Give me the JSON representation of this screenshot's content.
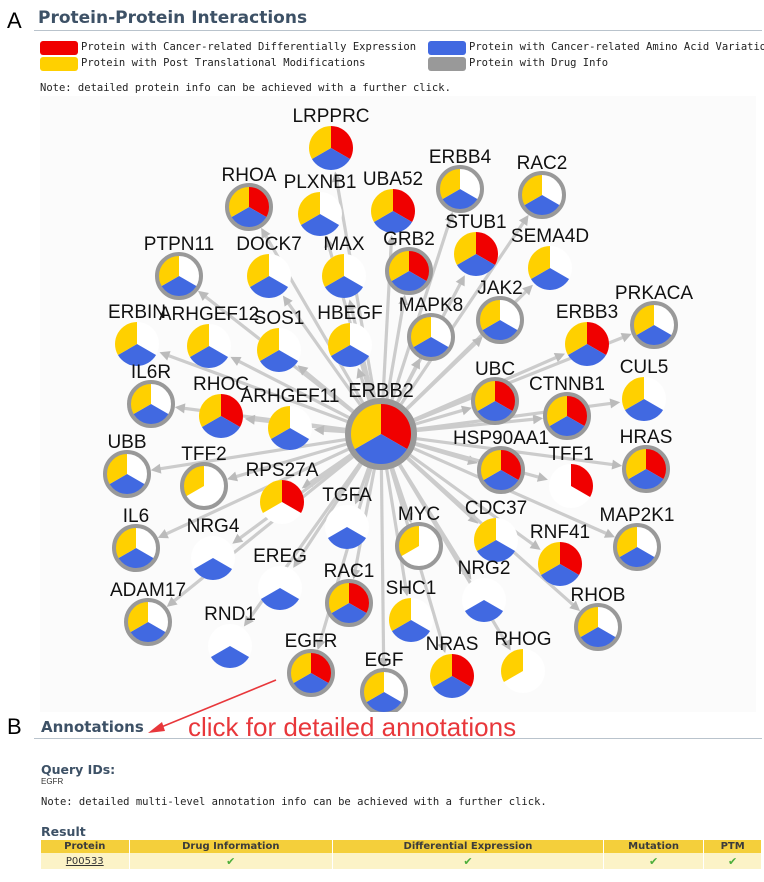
{
  "panel_labels": {
    "a": "A",
    "b": "B"
  },
  "ppi": {
    "title": "Protein-Protein Interactions",
    "legend": [
      {
        "label": "Protein with Cancer-related Differentially Expression",
        "color": "#f00000"
      },
      {
        "label": "Protein with Post Translational Modifications",
        "color": "#ffd000"
      },
      {
        "label": "Protein with Cancer-related Amino Acid Variations",
        "color": "#4169e1"
      },
      {
        "label": "Protein with Drug Info",
        "color": "#999999"
      }
    ],
    "note": "Note: detailed protein info can be achieved with a further click."
  },
  "colors": {
    "red": "#f00000",
    "yellow": "#ffd000",
    "blue": "#4169e1",
    "drug_ring": "#999999",
    "edge": "#cccccc"
  },
  "network": {
    "center": {
      "name": "ERBB2",
      "r": "#",
      "features": [
        "red",
        "yellow",
        "blue"
      ],
      "drug": true
    },
    "nodes": [
      {
        "name": "LRPPRC",
        "features": [
          "red",
          "blue",
          "yellow"
        ],
        "drug": false
      },
      {
        "name": "RHOA",
        "features": [
          "red",
          "blue",
          "yellow"
        ],
        "drug": true
      },
      {
        "name": "PLXNB1",
        "features": [
          "blue",
          "yellow"
        ],
        "drug": false
      },
      {
        "name": "UBA52",
        "features": [
          "red",
          "blue",
          "yellow"
        ],
        "drug": false
      },
      {
        "name": "ERBB4",
        "features": [
          "blue",
          "yellow"
        ],
        "drug": true
      },
      {
        "name": "RAC2",
        "features": [
          "blue",
          "yellow"
        ],
        "drug": true
      },
      {
        "name": "PTPN11",
        "features": [
          "blue",
          "yellow"
        ],
        "drug": true
      },
      {
        "name": "DOCK7",
        "features": [
          "blue",
          "yellow"
        ],
        "drug": false
      },
      {
        "name": "MAX",
        "features": [
          "blue",
          "yellow"
        ],
        "drug": false
      },
      {
        "name": "GRB2",
        "features": [
          "red",
          "blue",
          "yellow"
        ],
        "drug": true
      },
      {
        "name": "STUB1",
        "features": [
          "red",
          "blue",
          "yellow"
        ],
        "drug": false
      },
      {
        "name": "SEMA4D",
        "features": [
          "blue",
          "yellow"
        ],
        "drug": false
      },
      {
        "name": "ERBIN",
        "features": [
          "blue",
          "yellow"
        ],
        "drug": false
      },
      {
        "name": "ARHGEF12",
        "features": [
          "blue",
          "yellow"
        ],
        "drug": false
      },
      {
        "name": "SOS1",
        "features": [
          "blue",
          "yellow"
        ],
        "drug": false
      },
      {
        "name": "HBEGF",
        "features": [
          "blue",
          "yellow"
        ],
        "drug": false
      },
      {
        "name": "MAPK8",
        "features": [
          "blue",
          "yellow"
        ],
        "drug": true
      },
      {
        "name": "JAK2",
        "features": [
          "blue",
          "yellow"
        ],
        "drug": true
      },
      {
        "name": "ERBB3",
        "features": [
          "red",
          "blue",
          "yellow"
        ],
        "drug": false
      },
      {
        "name": "PRKACA",
        "features": [
          "blue",
          "yellow"
        ],
        "drug": true
      },
      {
        "name": "IL6R",
        "features": [
          "blue",
          "yellow"
        ],
        "drug": true
      },
      {
        "name": "RHOC",
        "features": [
          "red",
          "blue",
          "yellow"
        ],
        "drug": false
      },
      {
        "name": "ARHGEF11",
        "features": [
          "blue",
          "yellow"
        ],
        "drug": false
      },
      {
        "name": "UBC",
        "features": [
          "red",
          "blue",
          "yellow"
        ],
        "drug": true
      },
      {
        "name": "CTNNB1",
        "features": [
          "red",
          "blue",
          "yellow"
        ],
        "drug": true
      },
      {
        "name": "CUL5",
        "features": [
          "blue",
          "yellow"
        ],
        "drug": false
      },
      {
        "name": "UBB",
        "features": [
          "blue",
          "yellow"
        ],
        "drug": true
      },
      {
        "name": "TFF2",
        "features": [
          "yellow"
        ],
        "drug": true
      },
      {
        "name": "RPS27A",
        "features": [
          "red",
          "yellow"
        ],
        "drug": false
      },
      {
        "name": "HSP90AA1",
        "features": [
          "red",
          "blue",
          "yellow"
        ],
        "drug": true
      },
      {
        "name": "TFF1",
        "features": [
          "red"
        ],
        "drug": false
      },
      {
        "name": "HRAS",
        "features": [
          "red",
          "blue",
          "yellow"
        ],
        "drug": true
      },
      {
        "name": "IL6",
        "features": [
          "blue",
          "yellow"
        ],
        "drug": true
      },
      {
        "name": "NRG4",
        "features": [
          "blue"
        ],
        "drug": false
      },
      {
        "name": "TGFA",
        "features": [
          "blue"
        ],
        "drug": false
      },
      {
        "name": "MYC",
        "features": [
          "yellow"
        ],
        "drug": true
      },
      {
        "name": "CDC37",
        "features": [
          "blue",
          "yellow"
        ],
        "drug": false
      },
      {
        "name": "RNF41",
        "features": [
          "red",
          "blue",
          "yellow"
        ],
        "drug": false
      },
      {
        "name": "MAP2K1",
        "features": [
          "blue",
          "yellow"
        ],
        "drug": true
      },
      {
        "name": "EREG",
        "features": [
          "blue"
        ],
        "drug": false
      },
      {
        "name": "ADAM17",
        "features": [
          "blue",
          "yellow"
        ],
        "drug": true
      },
      {
        "name": "RAC1",
        "features": [
          "red",
          "blue",
          "yellow"
        ],
        "drug": true
      },
      {
        "name": "SHC1",
        "features": [
          "blue",
          "yellow"
        ],
        "drug": false
      },
      {
        "name": "NRG2",
        "features": [
          "blue"
        ],
        "drug": false
      },
      {
        "name": "RHOB",
        "features": [
          "blue",
          "yellow"
        ],
        "drug": true
      },
      {
        "name": "RND1",
        "features": [
          "blue"
        ],
        "drug": false
      },
      {
        "name": "EGFR",
        "features": [
          "red",
          "blue",
          "yellow"
        ],
        "drug": true
      },
      {
        "name": "EGF",
        "features": [
          "blue",
          "yellow"
        ],
        "drug": true
      },
      {
        "name": "NRAS",
        "features": [
          "red",
          "blue",
          "yellow"
        ],
        "drug": false
      },
      {
        "name": "RHOG",
        "features": [
          "yellow"
        ],
        "drug": false
      }
    ]
  },
  "callout": "click for detailed annotations",
  "annotations": {
    "title": "Annotations",
    "query_ids_label": "Query IDs:",
    "query_ids_value": "EGFR",
    "note": "Note: detailed multi-level annotation info can be achieved with a further click.",
    "result_label": "Result",
    "table": {
      "headers": [
        "Protein",
        "Drug Information",
        "Differential Expression",
        "Mutation",
        "PTM"
      ],
      "rows": [
        {
          "protein": "P00533",
          "check_icon": "check-icon",
          "check_glyph": "✔"
        }
      ]
    }
  }
}
